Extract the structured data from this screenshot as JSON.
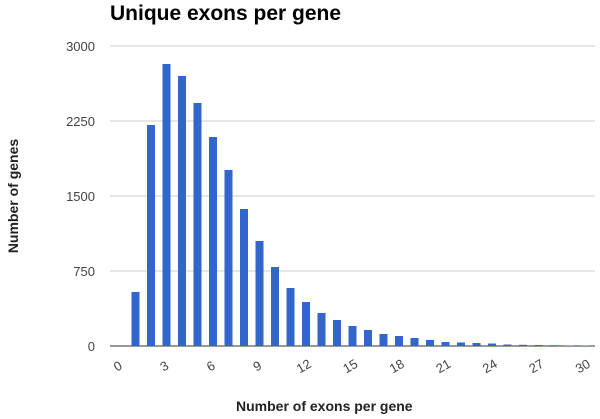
{
  "chart_data": {
    "type": "bar",
    "title": "Unique exons per gene",
    "xlabel": "Number of exons per gene",
    "ylabel": "Number of genes",
    "x": [
      1,
      2,
      3,
      4,
      5,
      6,
      7,
      8,
      9,
      10,
      11,
      12,
      13,
      14,
      15,
      16,
      17,
      18,
      19,
      20,
      21,
      22,
      23,
      24,
      25,
      26,
      27,
      28,
      29,
      30
    ],
    "values": [
      540,
      2210,
      2820,
      2700,
      2430,
      2090,
      1760,
      1370,
      1050,
      790,
      580,
      440,
      330,
      260,
      200,
      160,
      120,
      100,
      80,
      60,
      40,
      35,
      30,
      25,
      15,
      12,
      10,
      8,
      5,
      5
    ],
    "ylim": [
      0,
      3000
    ],
    "y_ticks": [
      {
        "value": 0,
        "label": "0"
      },
      {
        "value": 750,
        "label": "750"
      },
      {
        "value": 1500,
        "label": "1500"
      },
      {
        "value": 2250,
        "label": "2250"
      },
      {
        "value": 3000,
        "label": "3000"
      }
    ],
    "x_ticks": [
      {
        "value": 0,
        "label": "0"
      },
      {
        "value": 3,
        "label": "3"
      },
      {
        "value": 6,
        "label": "6"
      },
      {
        "value": 9,
        "label": "9"
      },
      {
        "value": 12,
        "label": "12"
      },
      {
        "value": 15,
        "label": "15"
      },
      {
        "value": 18,
        "label": "18"
      },
      {
        "value": 21,
        "label": "21"
      },
      {
        "value": 24,
        "label": "24"
      },
      {
        "value": 27,
        "label": "27"
      },
      {
        "value": 30,
        "label": "30"
      }
    ],
    "grid": true,
    "legend": "none",
    "bar_color": "#3366cc",
    "grid_color": "#cccccc"
  }
}
